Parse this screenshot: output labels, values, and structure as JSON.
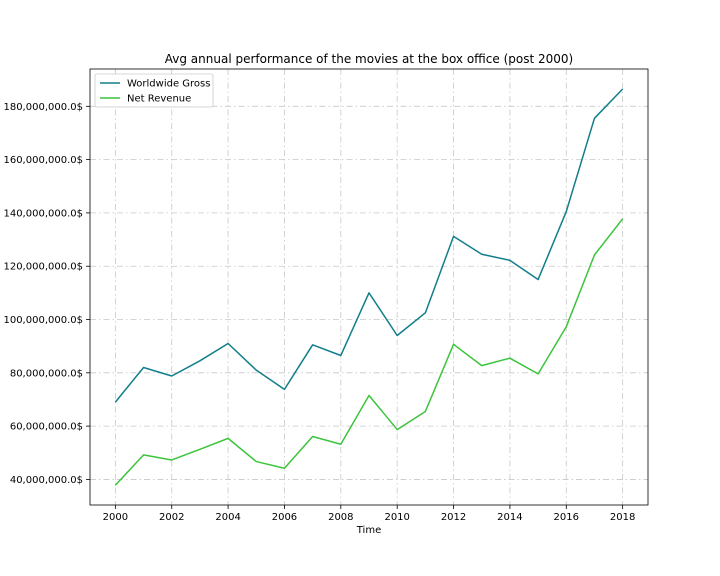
{
  "chart_data": {
    "type": "line",
    "title": "Avg annual performance of the movies at the box office (post 2000)",
    "xlabel": "Time",
    "ylabel": "",
    "x": [
      2000,
      2001,
      2002,
      2003,
      2004,
      2005,
      2006,
      2007,
      2008,
      2009,
      2010,
      2011,
      2012,
      2013,
      2014,
      2015,
      2016,
      2017,
      2018
    ],
    "x_ticks": [
      "2000",
      "2002",
      "2004",
      "2006",
      "2008",
      "2010",
      "2012",
      "2014",
      "2016",
      "2018"
    ],
    "y_ticks": [
      "40,000,000.0$",
      "60,000,000.0$",
      "80,000,000.0$",
      "100,000,000.0$",
      "120,000,000.0$",
      "140,000,000.0$",
      "160,000,000.0$",
      "180,000,000.0$"
    ],
    "xlim": [
      1999.1,
      2018.9
    ],
    "ylim": [
      30400000,
      194000000
    ],
    "grid": true,
    "legend_position": "top-left",
    "series": [
      {
        "name": "Worldwide Gross",
        "color": "#117e8b",
        "values": [
          69000000,
          82000000,
          78800000,
          84500000,
          91000000,
          81000000,
          73800000,
          90500000,
          86500000,
          110000000,
          94000000,
          102500000,
          131200000,
          124500000,
          122200000,
          115000000,
          140500000,
          175500000,
          186500000
        ]
      },
      {
        "name": "Net Revenue",
        "color": "#3cc43c",
        "values": [
          37800000,
          49200000,
          47300000,
          51300000,
          55400000,
          46700000,
          44200000,
          56100000,
          53200000,
          71500000,
          58700000,
          65500000,
          90700000,
          82700000,
          85500000,
          79600000,
          97300000,
          124200000,
          137800000
        ]
      }
    ]
  }
}
